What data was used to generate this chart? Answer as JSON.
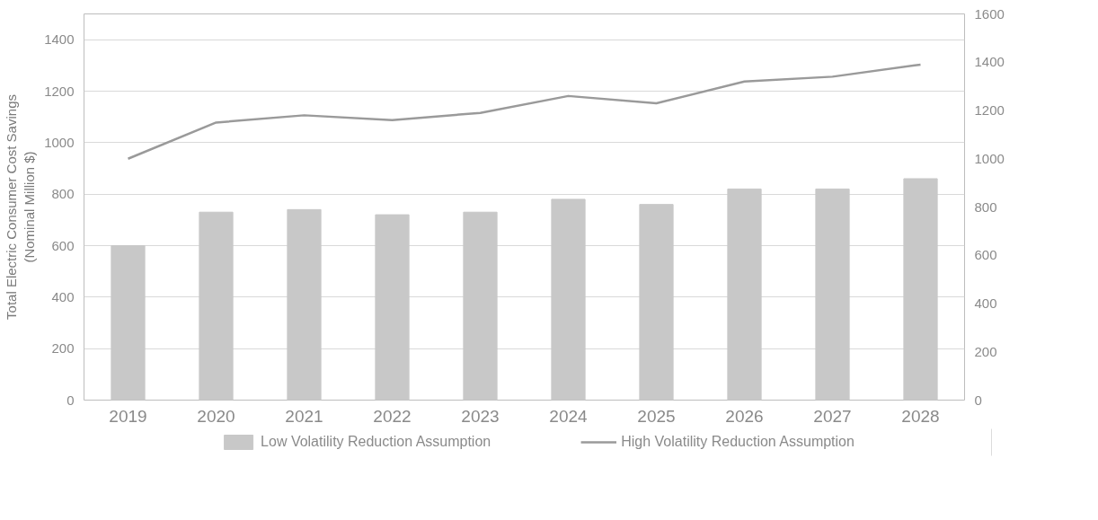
{
  "chart_data": {
    "type": "bar",
    "ylabel": "Total Electric Consumer Cost Savings\n(Nominal Million $)",
    "categories": [
      "2019",
      "2020",
      "2021",
      "2022",
      "2023",
      "2024",
      "2025",
      "2026",
      "2027",
      "2028"
    ],
    "series": [
      {
        "name": "Low Volatility Reduction Assumption",
        "color": "#c8c8c8",
        "values": [
          600,
          730,
          740,
          720,
          730,
          780,
          760,
          820,
          820,
          860
        ]
      },
      {
        "name": "High Volatility Reduction Assumption",
        "type": "line",
        "axis": "y2",
        "color": "#9a9a9a",
        "values": [
          1000,
          1150,
          1180,
          1160,
          1190,
          1260,
          1230,
          1320,
          1340,
          1390
        ]
      }
    ],
    "ylim": [
      0,
      1500
    ],
    "yticks": [
      0,
      200,
      400,
      600,
      800,
      1000,
      1200,
      1400
    ],
    "y2lim": [
      0,
      1600
    ],
    "y2ticks": [
      0,
      200,
      400,
      600,
      800,
      1000,
      1200,
      1400,
      1600
    ],
    "grid": "y",
    "legend": "bottom",
    "marker": "none",
    "line_style": "solid"
  }
}
